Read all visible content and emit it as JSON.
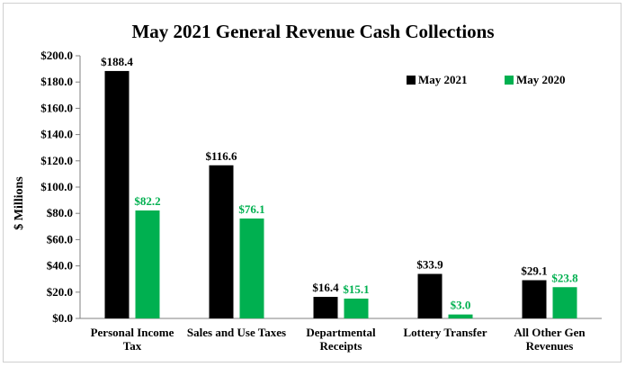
{
  "chart_data": {
    "type": "bar",
    "title": "May 2021 General Revenue Cash Collections",
    "ylabel": "$ Millions",
    "xlabel": "",
    "ylim": [
      0,
      200
    ],
    "yticks": [
      "$0.0",
      "$20.0",
      "$40.0",
      "$60.0",
      "$80.0",
      "$100.0",
      "$120.0",
      "$140.0",
      "$160.0",
      "$180.0",
      "$200.0"
    ],
    "categories": [
      [
        "Personal Income",
        "Tax"
      ],
      [
        "Sales and Use Taxes"
      ],
      [
        "Departmental",
        "Receipts"
      ],
      [
        "Lottery Transfer"
      ],
      [
        "All Other Gen",
        "Revenues"
      ]
    ],
    "series": [
      {
        "name": "May 2021",
        "color": "#000000",
        "label_color": "#000000",
        "values": [
          188.4,
          116.6,
          16.4,
          33.9,
          29.1
        ],
        "labels": [
          "$188.4",
          "$116.6",
          "$16.4",
          "$33.9",
          "$29.1"
        ]
      },
      {
        "name": "May 2020",
        "color": "#00b050",
        "label_color": "#00b050",
        "values": [
          82.2,
          76.1,
          15.1,
          3.0,
          23.8
        ],
        "labels": [
          "$82.2",
          "$76.1",
          "$15.1",
          "$3.0",
          "$23.8"
        ]
      }
    ],
    "grid": false,
    "legend_position": "top-right"
  }
}
